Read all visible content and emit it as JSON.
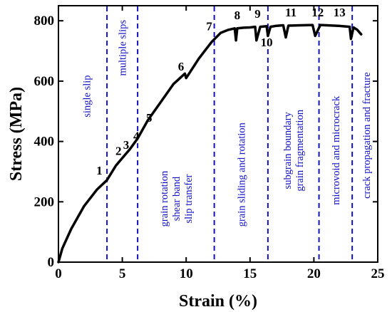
{
  "chart_data": {
    "type": "line",
    "xlabel": "Strain (%)",
    "ylabel": "Stress (MPa)",
    "xlim": [
      0,
      25
    ],
    "ylim": [
      0,
      850
    ],
    "xticks": [
      0,
      5,
      10,
      15,
      20,
      25
    ],
    "yticks": [
      0,
      200,
      400,
      600,
      800
    ],
    "grid": false,
    "colors": {
      "curve": "#000000",
      "dividers": "#1010c8",
      "region_text": "#1010c8"
    },
    "series": [
      {
        "x": [
          0,
          0.3,
          1,
          2,
          3,
          3.8,
          4.5,
          5,
          5.6,
          6.2,
          7,
          8,
          9,
          9.9,
          10,
          11,
          12,
          12.7,
          13.3,
          13.8,
          13.9,
          14,
          14.5,
          15,
          15.4,
          15.5,
          15.8,
          16.3,
          16.4,
          16.6,
          17,
          17.6,
          17.8,
          18,
          19,
          19.9,
          20.1,
          20.5,
          21,
          22,
          22.8,
          22.9,
          23.1,
          23.4,
          23.7
        ],
        "values": [
          0,
          45,
          110,
          185,
          240,
          272,
          320,
          345,
          375,
          410,
          470,
          530,
          590,
          625,
          610,
          675,
          730,
          760,
          770,
          775,
          735,
          775,
          777,
          778,
          780,
          735,
          780,
          782,
          750,
          780,
          783,
          785,
          745,
          784,
          785,
          786,
          750,
          786,
          785,
          783,
          780,
          740,
          778,
          770,
          755
        ]
      }
    ],
    "dividers_x": [
      3.8,
      6.2,
      12.2,
      16.4,
      20.4,
      23.0
    ],
    "region_labels": [
      {
        "text": "single slip",
        "x": 2.2,
        "y": 550
      },
      {
        "text": "multiple slips",
        "x": 5.0,
        "y": 710
      },
      {
        "lines": [
          "grain rotation",
          "shear band",
          "slip transfer"
        ],
        "x": 9.2,
        "y": 210
      },
      {
        "text": "grain sliding and rotation",
        "x": 14.3,
        "y": 290
      },
      {
        "lines": [
          "subgrain boundary",
          "grain fragmentation"
        ],
        "x": 18.4,
        "y": 370
      },
      {
        "text": "microvoid and microcrack",
        "x": 21.7,
        "y": 370
      },
      {
        "text": "crack propagation and fracture",
        "x": 24.1,
        "y": 420
      }
    ],
    "annotations": [
      {
        "label": "1",
        "x": 3.2,
        "y": 290
      },
      {
        "label": "2",
        "x": 4.7,
        "y": 355
      },
      {
        "label": "3",
        "x": 5.3,
        "y": 375
      },
      {
        "label": "4",
        "x": 6.1,
        "y": 405
      },
      {
        "label": "5",
        "x": 7.1,
        "y": 465
      },
      {
        "label": "6",
        "x": 9.6,
        "y": 635
      },
      {
        "label": "7",
        "x": 11.8,
        "y": 768
      },
      {
        "label": "8",
        "x": 14.0,
        "y": 805
      },
      {
        "label": "9",
        "x": 15.6,
        "y": 810
      },
      {
        "label": "10",
        "x": 16.3,
        "y": 715
      },
      {
        "label": "11",
        "x": 18.2,
        "y": 815
      },
      {
        "label": "12",
        "x": 20.3,
        "y": 815
      },
      {
        "label": "13",
        "x": 22.0,
        "y": 815
      }
    ]
  }
}
